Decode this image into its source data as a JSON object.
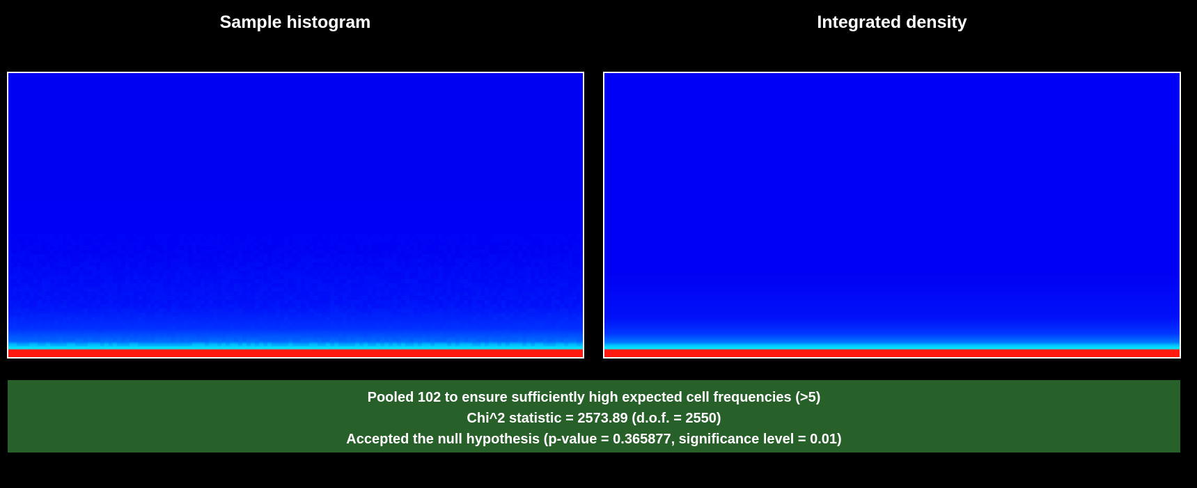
{
  "panels": {
    "left": {
      "title": "Sample histogram"
    },
    "right": {
      "title": "Integrated density"
    }
  },
  "heatmap_colors": {
    "background": "#0000f2",
    "low": "#0000ff",
    "mid": "#0060ff",
    "high": "#00e5ff",
    "peak": "#ff1a10"
  },
  "result": {
    "background_color": "#28602a",
    "lines": [
      "Pooled 102 to ensure sufficiently high expected cell frequencies (>5)",
      "Chi^2 statistic = 2573.89 (d.o.f. = 2550)",
      "Accepted the null hypothesis (p-value = 0.365877, significance level = 0.01)"
    ]
  },
  "chart_data": [
    {
      "type": "heatmap",
      "title": "Sample histogram",
      "xlabel": "",
      "ylabel": "",
      "grid": false,
      "legend": "none"
    },
    {
      "type": "heatmap",
      "title": "Integrated density",
      "xlabel": "",
      "ylabel": "",
      "grid": false,
      "legend": "none"
    }
  ]
}
